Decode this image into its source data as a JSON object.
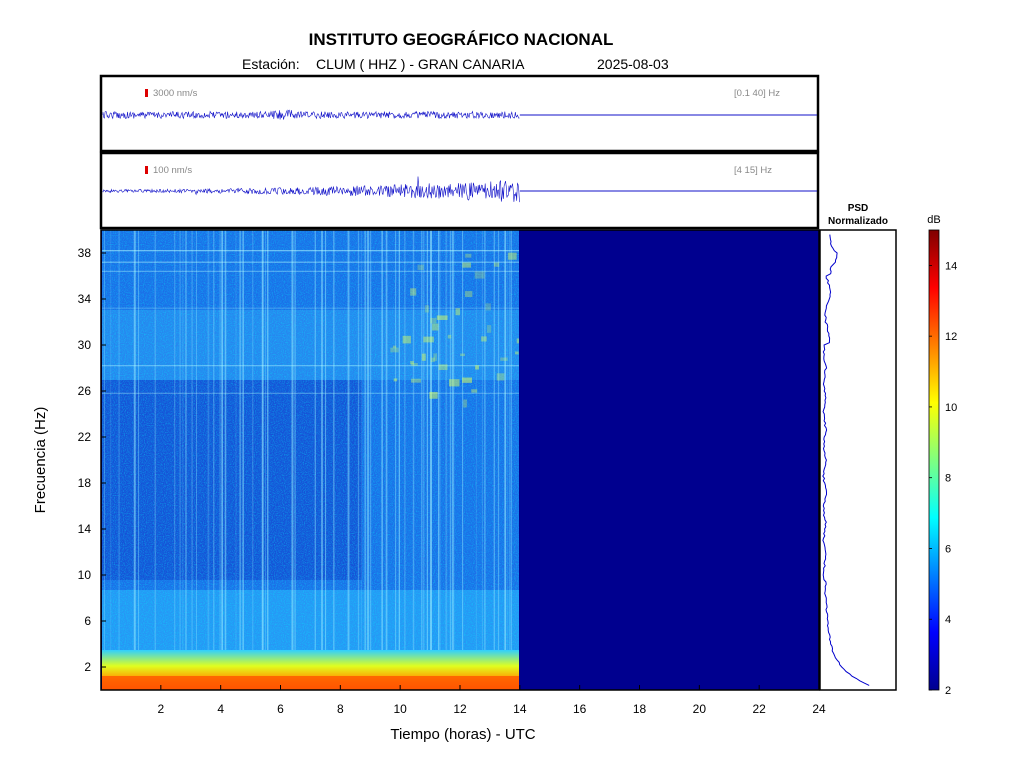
{
  "header": {
    "title": "INSTITUTO GEOGRÁFICO NACIONAL",
    "station_prefix": "Estación:",
    "station": "CLUM ( HHZ ) - GRAN CANARIA",
    "date": "2025-08-03"
  },
  "traces": [
    {
      "amplitude_label": "3000 nm/s",
      "filter_label": "[0.1 40] Hz"
    },
    {
      "amplitude_label": "100 nm/s",
      "filter_label": "[4 15] Hz"
    }
  ],
  "chart_data": {
    "type": "heatmap",
    "xlabel": "Tiempo (horas) - UTC",
    "ylabel": "Frecuencia  (Hz)",
    "x_ticks": [
      2,
      4,
      6,
      8,
      10,
      12,
      14,
      16,
      18,
      20,
      22,
      24
    ],
    "y_ticks": [
      2,
      6,
      10,
      14,
      18,
      22,
      26,
      30,
      34,
      38
    ],
    "xlim": [
      0,
      24
    ],
    "ylim": [
      0,
      40
    ],
    "data_end_hour": 14,
    "colorbar": {
      "label": "dB",
      "ticks": [
        2,
        4,
        6,
        8,
        10,
        12,
        14
      ],
      "range": [
        2,
        15
      ]
    },
    "psd": {
      "title_line1": "PSD",
      "title_line2": "Normalizado"
    },
    "colors": {
      "trace": "#1010c8",
      "empty": "#00008f",
      "frame": "#000000"
    }
  }
}
